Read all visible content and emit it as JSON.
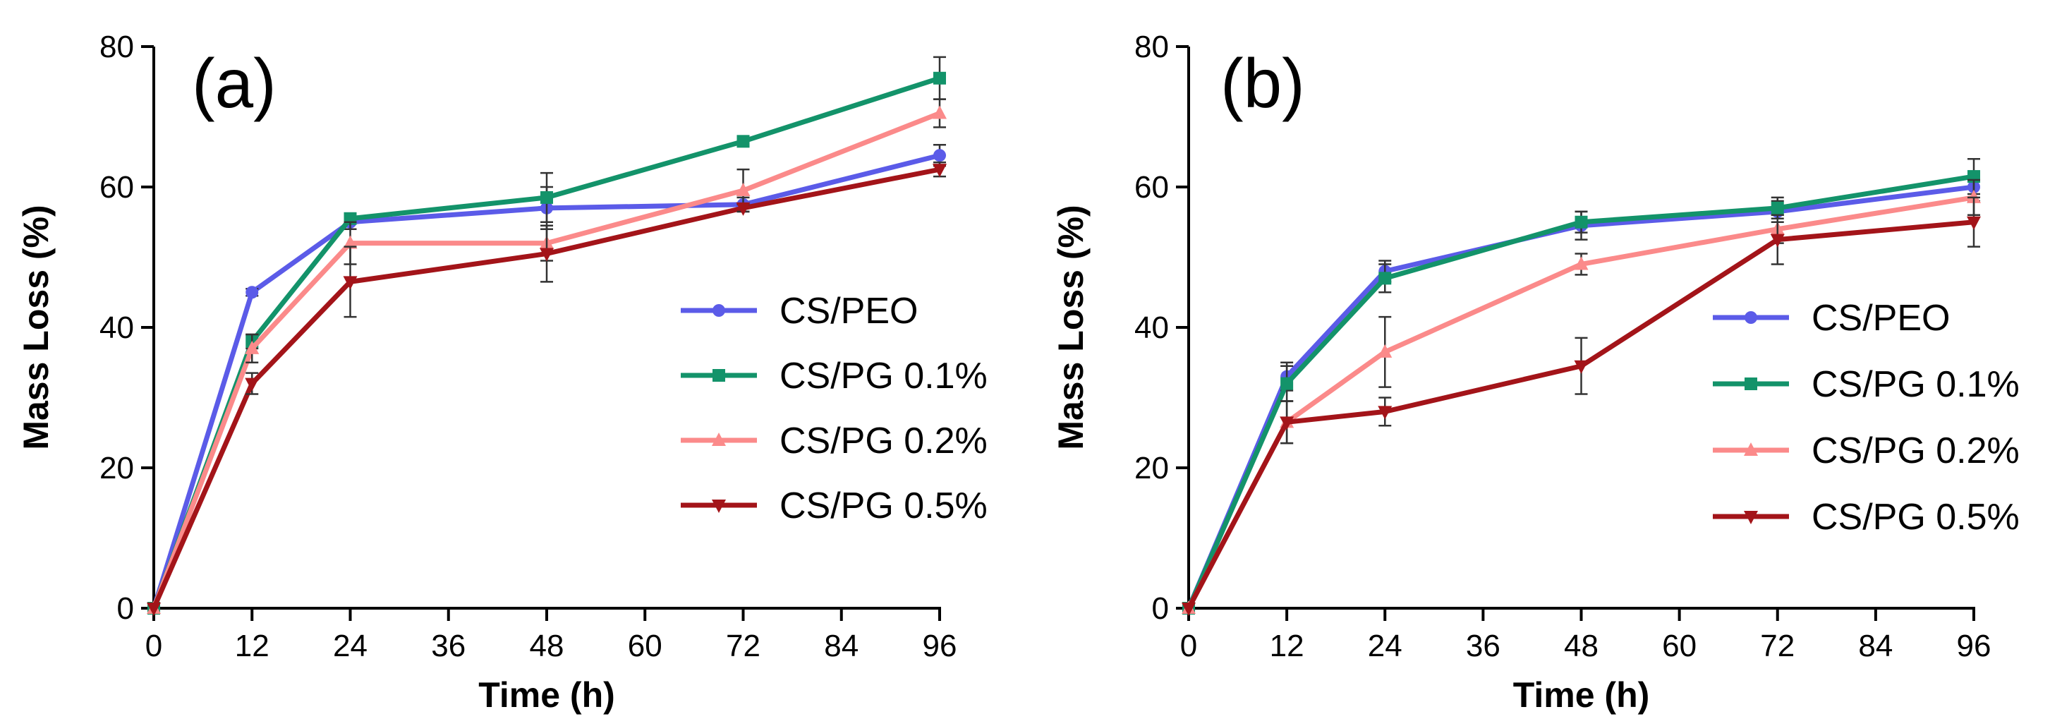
{
  "chart_data": [
    {
      "type": "line",
      "panel_label": "(a)",
      "xlabel": "Time (h)",
      "ylabel": "Mass Loss (%)",
      "x": [
        0,
        12,
        24,
        48,
        72,
        96
      ],
      "xlim": [
        0,
        96
      ],
      "ylim": [
        0,
        80
      ],
      "xticks": [
        "0",
        "12",
        "24",
        "36",
        "48",
        "60",
        "72",
        "84",
        "96"
      ],
      "yticks": [
        "0",
        "20",
        "40",
        "60",
        "80"
      ],
      "legend_position": "lower-right",
      "series": [
        {
          "name": "CS/PEO",
          "color": "#5b5be8",
          "marker": "circle",
          "values": [
            0,
            45,
            55,
            57,
            57.5,
            64.5
          ],
          "errors": [
            0,
            0.5,
            1,
            3,
            1,
            1.5
          ]
        },
        {
          "name": "CS/PG 0.1%",
          "color": "#13936a",
          "marker": "square",
          "values": [
            0,
            38,
            55.5,
            58.5,
            66.5,
            75.5
          ],
          "errors": [
            0,
            1,
            0.5,
            3.5,
            0.5,
            3
          ]
        },
        {
          "name": "CS/PG 0.2%",
          "color": "#fb8a8a",
          "marker": "triangle-up",
          "values": [
            0,
            37,
            52,
            52,
            59.5,
            70.5
          ],
          "errors": [
            0,
            2,
            3,
            2.5,
            3,
            2
          ]
        },
        {
          "name": "CS/PG 0.5%",
          "color": "#a31419",
          "marker": "triangle-down",
          "values": [
            0,
            32,
            46.5,
            50.5,
            57,
            62.5
          ],
          "errors": [
            0,
            1.5,
            5,
            4,
            0.5,
            1
          ]
        }
      ]
    },
    {
      "type": "line",
      "panel_label": "(b)",
      "xlabel": "Time (h)",
      "ylabel": "Mass Loss (%)",
      "x": [
        0,
        12,
        24,
        48,
        72,
        96
      ],
      "xlim": [
        0,
        96
      ],
      "ylim": [
        0,
        80
      ],
      "xticks": [
        "0",
        "12",
        "24",
        "36",
        "48",
        "60",
        "72",
        "84",
        "96"
      ],
      "yticks": [
        "0",
        "20",
        "40",
        "60",
        "80"
      ],
      "legend_position": "lower-right",
      "series": [
        {
          "name": "CS/PEO",
          "color": "#5b5be8",
          "marker": "circle",
          "values": [
            0,
            33,
            48,
            54.5,
            56.5,
            60
          ],
          "errors": [
            0,
            2,
            1.5,
            2,
            1.5,
            2
          ]
        },
        {
          "name": "CS/PG 0.1%",
          "color": "#13936a",
          "marker": "square",
          "values": [
            0,
            32,
            47,
            55,
            57,
            61.5
          ],
          "errors": [
            0,
            2.5,
            2,
            1.5,
            1.5,
            2.5
          ]
        },
        {
          "name": "CS/PG 0.2%",
          "color": "#fb8a8a",
          "marker": "triangle-up",
          "values": [
            0,
            26.5,
            36.5,
            49,
            54,
            58.5
          ],
          "errors": [
            0,
            3,
            5,
            1.5,
            2,
            2.5
          ]
        },
        {
          "name": "CS/PG 0.5%",
          "color": "#a31419",
          "marker": "triangle-down",
          "values": [
            0,
            26.5,
            28,
            34.5,
            52.5,
            55
          ],
          "errors": [
            0,
            3,
            2,
            4,
            3.5,
            3.5
          ]
        }
      ]
    }
  ]
}
